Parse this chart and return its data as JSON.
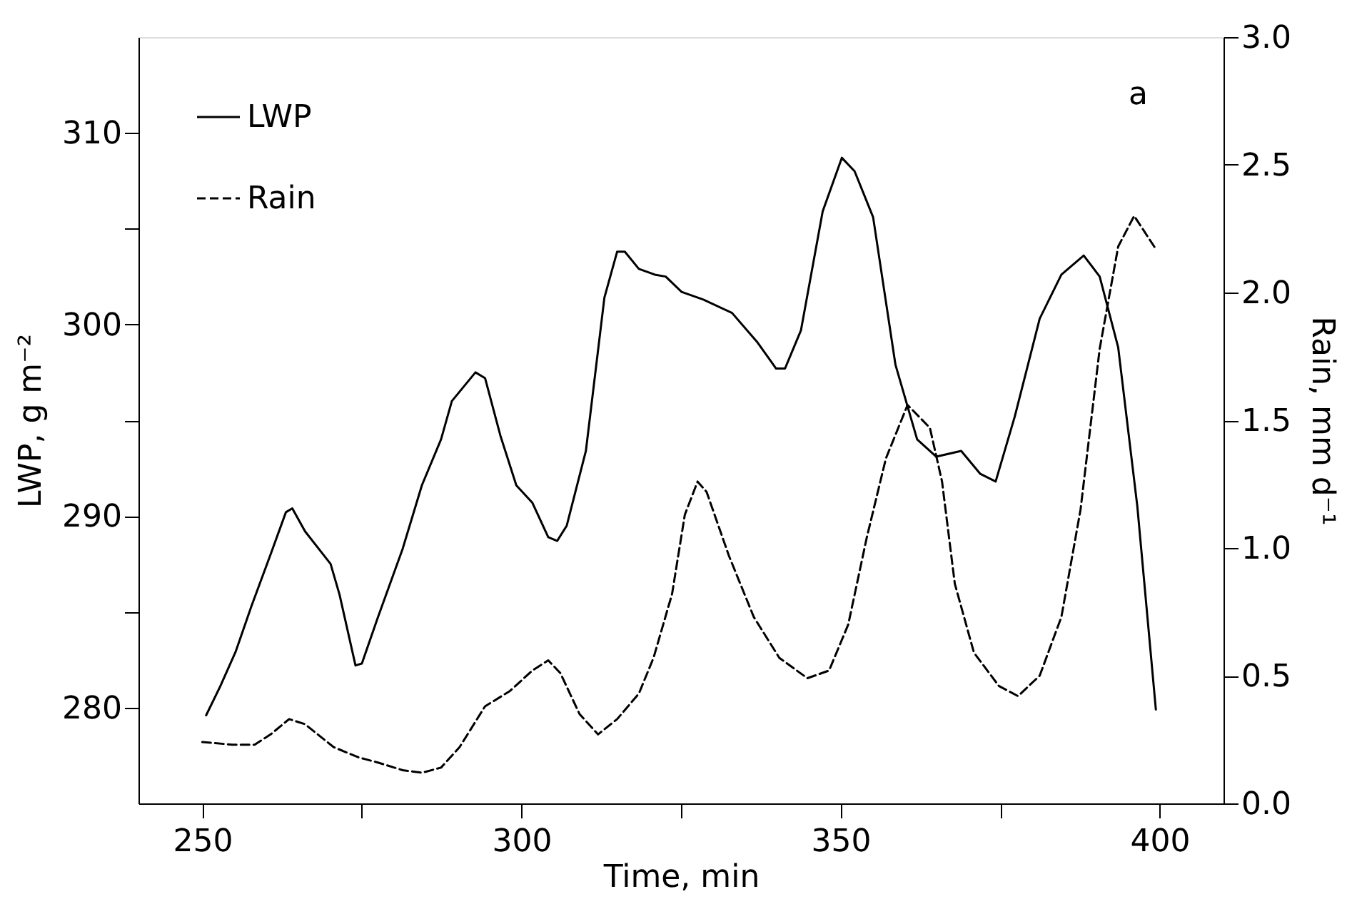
{
  "chart_data": {
    "type": "line",
    "xlabel": "Time,  min",
    "ylabel": "LWP, g m⁻²",
    "y2label": "Rain,  mm d⁻¹",
    "annotations": [
      "a"
    ],
    "xlim": [
      240,
      410
    ],
    "xticks": [
      250,
      {
        "value": 275,
        "label": null
      },
      300,
      {
        "value": 325,
        "label": null
      },
      350,
      {
        "value": 375,
        "label": null
      },
      400
    ],
    "ylim": [
      275,
      315
    ],
    "yticks": [
      280,
      {
        "value": 285,
        "label": null
      },
      290,
      {
        "value": 295,
        "label": null
      },
      300,
      {
        "value": 305,
        "label": null
      },
      310
    ],
    "y2lim": [
      0,
      3
    ],
    "y2ticks": [
      {
        "value": 0,
        "label": "0.0"
      },
      0.5,
      {
        "value": 1,
        "label": "1.0"
      },
      1.5,
      {
        "value": 2,
        "label": "2.0"
      },
      2.5,
      {
        "value": 3,
        "label": "3.0"
      }
    ],
    "grid": false,
    "legend": "top left",
    "marker": "none",
    "series": [
      {
        "name": "LWP",
        "color": "#000000",
        "line_style": "solid",
        "x": [
          250.6,
          252.8,
          255.2,
          257.7,
          260.7,
          263.1,
          264.1,
          266.1,
          270.1,
          271.5,
          274.0,
          275.0,
          277.5,
          281.4,
          284.4,
          287.4,
          289.1,
          292.8,
          294.3,
          296.7,
          299.2,
          301.7,
          304.2,
          305.6,
          307.1,
          310.1,
          313.0,
          315.0,
          316.2,
          318.4,
          320.9,
          322.6,
          325.1,
          328.5,
          333.0,
          336.9,
          339.9,
          341.3,
          343.8,
          347.2,
          350.2,
          352.2,
          355.1,
          358.6,
          362.0,
          365.0,
          368.9,
          371.9,
          374.3,
          377.3,
          381.2,
          384.6,
          388.1,
          390.6,
          393.5,
          396.5,
          399.4
        ],
        "values": [
          279.6,
          281.1,
          282.9,
          285.3,
          288.0,
          290.2,
          290.4,
          289.2,
          287.5,
          285.9,
          282.2,
          282.3,
          284.7,
          288.3,
          291.6,
          294.0,
          296.0,
          297.5,
          297.2,
          294.2,
          291.6,
          290.7,
          288.9,
          288.7,
          289.5,
          293.4,
          301.4,
          303.8,
          303.8,
          302.9,
          302.6,
          302.5,
          301.7,
          301.3,
          300.6,
          299.1,
          297.7,
          297.7,
          299.7,
          305.9,
          308.7,
          308.0,
          305.6,
          297.9,
          294.0,
          293.1,
          293.4,
          292.2,
          291.8,
          295.2,
          300.3,
          302.6,
          303.6,
          302.5,
          298.8,
          290.5,
          279.9
        ]
      },
      {
        "name": "Rain",
        "color": "#000000",
        "line_style": "dashed",
        "axis": "y2",
        "x": [
          250.0,
          254.7,
          258.2,
          260.7,
          263.6,
          266.1,
          270.6,
          274.5,
          277.5,
          281.4,
          284.4,
          287.4,
          290.3,
          294.3,
          298.2,
          301.7,
          304.2,
          306.1,
          309.1,
          312.0,
          315.0,
          318.4,
          320.7,
          323.6,
          325.6,
          327.6,
          329.0,
          332.5,
          336.4,
          340.4,
          344.8,
          348.2,
          351.2,
          354.1,
          357.1,
          360.5,
          364.0,
          365.9,
          367.9,
          370.9,
          374.8,
          377.8,
          381.2,
          384.6,
          387.6,
          390.6,
          393.5,
          396.0,
          399.4
        ],
        "values": [
          0.24,
          0.23,
          0.23,
          0.27,
          0.33,
          0.31,
          0.22,
          0.18,
          0.16,
          0.13,
          0.12,
          0.14,
          0.22,
          0.38,
          0.44,
          0.52,
          0.56,
          0.51,
          0.35,
          0.27,
          0.33,
          0.43,
          0.57,
          0.82,
          1.13,
          1.26,
          1.22,
          0.97,
          0.73,
          0.57,
          0.49,
          0.52,
          0.7,
          1.04,
          1.35,
          1.56,
          1.47,
          1.26,
          0.86,
          0.59,
          0.46,
          0.42,
          0.5,
          0.73,
          1.15,
          1.78,
          2.18,
          2.3,
          2.17
        ]
      }
    ]
  }
}
